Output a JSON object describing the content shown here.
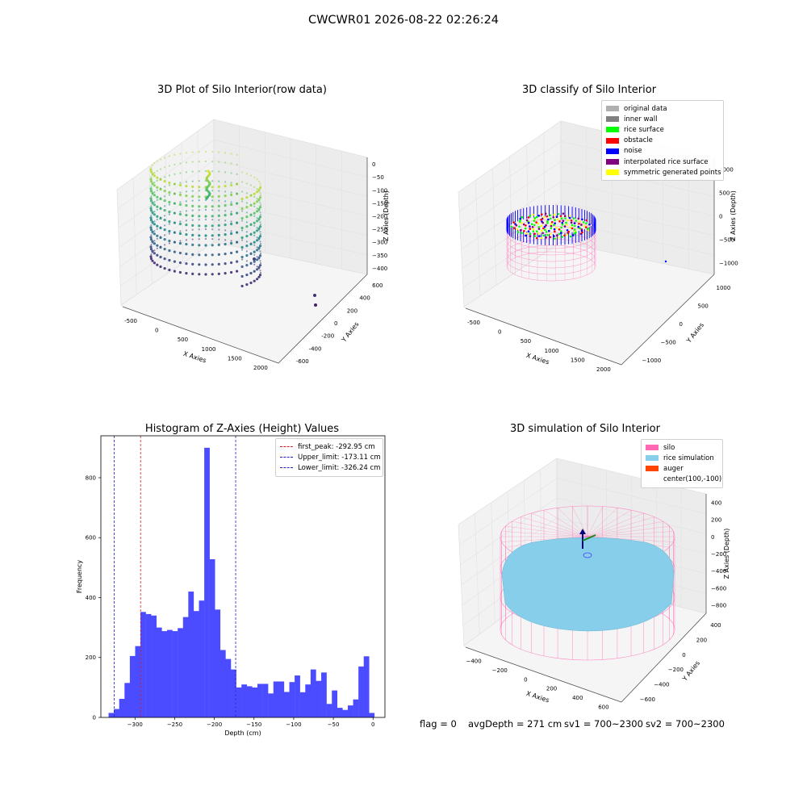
{
  "suptitle": "CWCWR01 2026-08-22 02:26:24",
  "colors": {
    "hist_bar": "#4b4bff",
    "peak_line": "#d22020",
    "limit_line": "#2020c8",
    "silo": "#ff69b4",
    "rice_simulation": "#87ceeb",
    "auger": "#ff4500",
    "original": "#b0b0b0",
    "inner_wall": "#808080",
    "rice_surface": "#00ff00",
    "obstacle": "#ff0000",
    "noise": "#0000ff",
    "interpolated": "#800080",
    "symmetric": "#ffff00"
  },
  "footer": {
    "flag": "flag = 0",
    "avg_depth": "avgDepth = 271 cm",
    "sv1": "sv1 = 700~2300",
    "sv2": "sv2 = 700~2300"
  },
  "chart_data": [
    {
      "type": "scatter",
      "title": "3D Plot of Silo Interior(row data)",
      "xlabel": "X Axies",
      "ylabel": "Y Axies",
      "zlabel": "Z Axies (Depth)",
      "x_ticks": [
        "-500",
        "0",
        "500",
        "1000",
        "1500",
        "2000"
      ],
      "y_ticks": [
        "-600",
        "-400",
        "-200",
        "0",
        "200",
        "400",
        "600"
      ],
      "z_ticks": [
        "0",
        "−50",
        "−100",
        "−150",
        "−200",
        "−250",
        "−300",
        "−350",
        "−400"
      ],
      "colormap": "viridis"
    },
    {
      "type": "scatter",
      "title": "3D classify of Silo Interior",
      "xlabel": "X Axies",
      "ylabel": "Y Axies",
      "zlabel": "Z Axies (Depth)",
      "x_ticks": [
        "-500",
        "0",
        "500",
        "1000",
        "1500",
        "2000"
      ],
      "y_ticks": [
        "−1000",
        "−500",
        "0",
        "500",
        "1000"
      ],
      "z_ticks": [
        "1000",
        "500",
        "0",
        "−500",
        "−1000"
      ],
      "legend": [
        {
          "label": "original data",
          "color": "#b0b0b0"
        },
        {
          "label": "inner wall",
          "color": "#808080"
        },
        {
          "label": "rice surface",
          "color": "#00ff00"
        },
        {
          "label": "obstacle",
          "color": "#ff0000"
        },
        {
          "label": "noise",
          "color": "#0000ff"
        },
        {
          "label": "interpolated rice surface",
          "color": "#800080"
        },
        {
          "label": "symmetric generated points",
          "color": "#ffff00"
        }
      ]
    },
    {
      "type": "bar",
      "title": "Histogram of Z-Axies (Height) Values",
      "xlabel": "Depth (cm)",
      "ylabel": "Frequency",
      "xlim": [
        -343,
        15
      ],
      "ylim": [
        0,
        940
      ],
      "x_ticks": [
        -300,
        -250,
        -200,
        -150,
        -100,
        -50,
        0
      ],
      "y_ticks": [
        0,
        200,
        400,
        600,
        800
      ],
      "bin_edges": [
        -333.3,
        -326.6,
        -319.9,
        -313.2,
        -306.5,
        -299.8,
        -293.1,
        -286.4,
        -279.7,
        -273.0,
        -266.3,
        -259.6,
        -252.9,
        -246.2,
        -239.5,
        -232.8,
        -226.1,
        -219.4,
        -212.7,
        -206.0,
        -199.3,
        -192.6,
        -185.9,
        -179.2,
        -172.5,
        -165.8,
        -159.1,
        -152.4,
        -145.7,
        -139.0,
        -132.3,
        -125.6,
        -118.9,
        -112.2,
        -105.5,
        -98.8,
        -92.1,
        -85.4,
        -78.7,
        -72.0,
        -65.3,
        -58.6,
        -51.9,
        -45.2,
        -38.5,
        -31.8,
        -25.1,
        -18.4,
        -11.7,
        -5.0,
        1.7
      ],
      "values": [
        15,
        28,
        62,
        115,
        205,
        238,
        352,
        345,
        340,
        300,
        288,
        292,
        288,
        298,
        335,
        420,
        355,
        390,
        900,
        528,
        360,
        225,
        195,
        160,
        100,
        110,
        104,
        100,
        112,
        112,
        80,
        120,
        120,
        85,
        118,
        140,
        84,
        110,
        160,
        122,
        150,
        45,
        90,
        32,
        25,
        40,
        60,
        170,
        204,
        15
      ],
      "vlines": [
        {
          "label": "first_peak: -292.95 cm",
          "x": -292.95,
          "color": "#d22020"
        },
        {
          "label": "Upper_limit: -173.11 cm",
          "x": -173.11,
          "color": "#2020c8"
        },
        {
          "label": "Lower_limit: -326.24 cm",
          "x": -326.24,
          "color": "#2020c8"
        }
      ]
    },
    {
      "type": "scatter",
      "title": "3D simulation of Silo Interior",
      "xlabel": "X Axies",
      "ylabel": "Y Axies",
      "zlabel": "Z Axies (Depth)",
      "x_ticks": [
        "−400",
        "−200",
        "0",
        "200",
        "400",
        "600"
      ],
      "y_ticks": [
        "−600",
        "−400",
        "−200",
        "0",
        "200",
        "400"
      ],
      "z_ticks": [
        "400",
        "200",
        "0",
        "−200",
        "−400",
        "−600",
        "−800"
      ],
      "legend": [
        {
          "label": "silo",
          "color": "#ff69b4"
        },
        {
          "label": "rice simulation",
          "color": "#87ceeb"
        },
        {
          "label": "auger",
          "color": "#ff4500"
        },
        {
          "label": "center(100,-100)",
          "color": ""
        }
      ]
    }
  ]
}
